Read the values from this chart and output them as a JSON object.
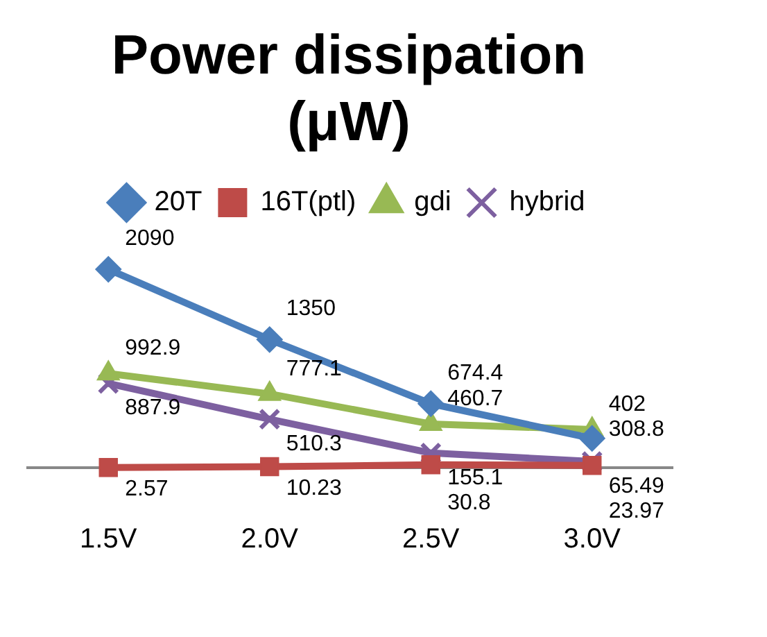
{
  "chart_data": {
    "type": "line",
    "title": "Power dissipation (μW)",
    "categories": [
      "1.5V",
      "2.0V",
      "2.5V",
      "3.0V"
    ],
    "series": [
      {
        "name": "20T",
        "color": "#4a7ebb",
        "values": [
          2090,
          1350,
          674.4,
          308.8
        ],
        "marker": "diamond"
      },
      {
        "name": "16T(ptl)",
        "color": "#be4b48",
        "values": [
          2.57,
          10.23,
          30.8,
          23.97
        ],
        "marker": "square"
      },
      {
        "name": "gdi",
        "color": "#98b954",
        "values": [
          992.9,
          777.1,
          460.7,
          402
        ],
        "marker": "triangle"
      },
      {
        "name": "hybrid",
        "color": "#7d60a0",
        "values": [
          887.9,
          510.3,
          155.1,
          65.49
        ],
        "marker": "cross"
      }
    ],
    "tick_labels": "x",
    "data_labels": true,
    "legend": "top",
    "grid": false
  }
}
